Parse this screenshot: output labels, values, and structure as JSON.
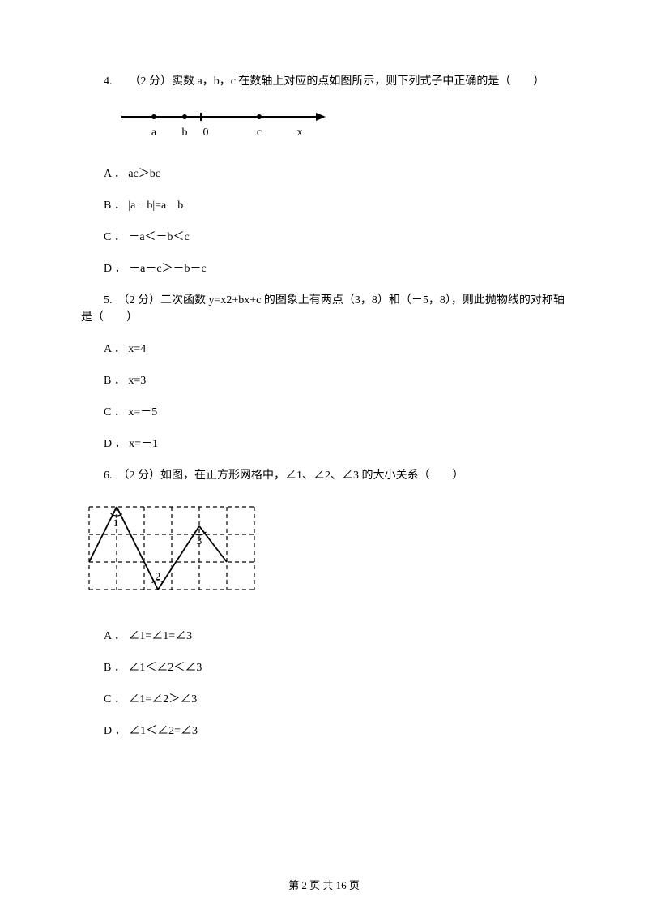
{
  "q4": {
    "stem": "4.　　（2 分）实数 a，b，c 在数轴上对应的点如图所示，则下列式子中正确的是（　　）",
    "options": {
      "A": "A ． ac＞bc",
      "B": "B ． |a－b|=a－b",
      "C": "C ． －a＜－b＜c",
      "D": "D ． －a－c＞－b－c"
    }
  },
  "numberline": {
    "labels": [
      "a",
      "b",
      "0",
      "c",
      "x"
    ],
    "color": "#000000"
  },
  "q5": {
    "stem": "5.　（2 分）二次函数 y=x2+bx+c 的图象上有两点（3，8）和（－5，8），则此抛物线的对称轴是（　　）",
    "options": {
      "A": "A ． x=4",
      "B": "B ． x=3",
      "C": "C ． x=－5",
      "D": "D ． x=－1"
    }
  },
  "q6": {
    "stem": "6.　（2 分）如图，在正方形网格中，∠1、∠2、∠3 的大小关系（　　）",
    "options": {
      "A": "A ． ∠1=∠1=∠3",
      "B": "B ． ∠1＜∠2＜∠3",
      "C": "C ． ∠1=∠2＞∠3",
      "D": "D ． ∠1＜∠2=∠3"
    }
  },
  "grid": {
    "cell": 34,
    "cols": 6,
    "rows": 3,
    "color": "#000000",
    "angle_labels": [
      "1",
      "2",
      "3"
    ]
  },
  "footer": "第 2 页 共 16 页"
}
